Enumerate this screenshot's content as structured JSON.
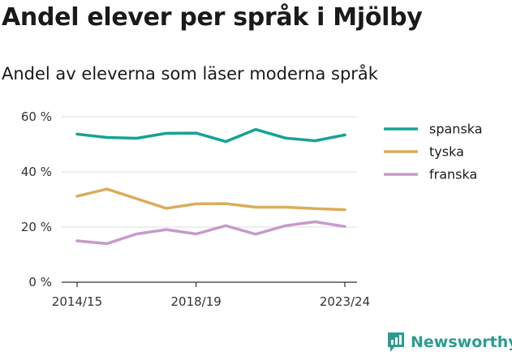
{
  "title": "Andel elever per språk i Mjölby",
  "subtitle": "Andel av eleverna som läser moderna språk",
  "brand": {
    "name": "Newsworthy",
    "icon": "newsworthy-logo-icon",
    "color": "#2a9d8f"
  },
  "chart_data": {
    "type": "line",
    "title": "Andel elever per språk i Mjölby",
    "subtitle": "Andel av eleverna som läser moderna språk",
    "x": [
      "2014/15",
      "2015/16",
      "2016/17",
      "2017/18",
      "2018/19",
      "2019/20",
      "2020/21",
      "2021/22",
      "2022/23",
      "2023/24"
    ],
    "x_tick_labels": [
      "2014/15",
      "2018/19",
      "2023/24"
    ],
    "y_ticks": [
      0,
      20,
      40,
      60
    ],
    "y_tick_labels": [
      "0 %",
      "20 %",
      "40 %",
      "60 %"
    ],
    "ylim": [
      0,
      60
    ],
    "grid": true,
    "legend_position": "right",
    "series": [
      {
        "name": "spanska",
        "color": "#16a394",
        "values": [
          53.7,
          52.5,
          52.2,
          54.0,
          54.1,
          51.0,
          55.4,
          52.3,
          51.3,
          53.4
        ]
      },
      {
        "name": "tyska",
        "color": "#d9ad5b",
        "values": [
          31.2,
          33.8,
          30.3,
          26.8,
          28.4,
          28.5,
          27.2,
          27.2,
          26.7,
          26.3
        ]
      },
      {
        "name": "franska",
        "color": "#c79bc9",
        "values": [
          15.0,
          14.0,
          17.5,
          19.1,
          17.5,
          20.5,
          17.4,
          20.5,
          21.9,
          20.2
        ]
      }
    ]
  }
}
